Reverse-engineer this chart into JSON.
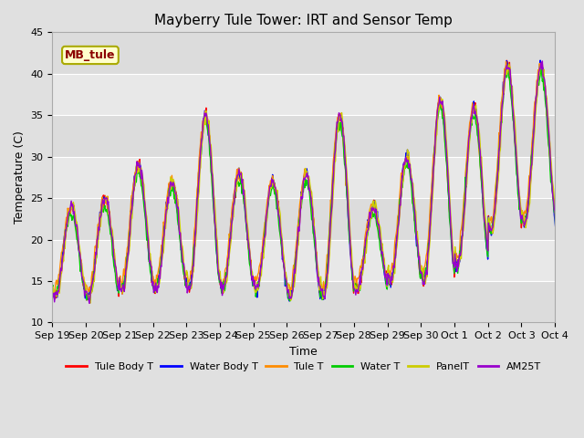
{
  "title": "Mayberry Tule Tower: IRT and Sensor Temp",
  "ylabel": "Temperature (C)",
  "xlabel": "Time",
  "ylim": [
    10,
    45
  ],
  "annotation_text": "MB_tule",
  "annotation_color": "#8B0000",
  "annotation_bg": "#FFFFCC",
  "annotation_border": "#AAAA00",
  "series": [
    {
      "label": "Tule Body T",
      "color": "#FF0000"
    },
    {
      "label": "Water Body T",
      "color": "#0000FF"
    },
    {
      "label": "Tule T",
      "color": "#FF8C00"
    },
    {
      "label": "Water T",
      "color": "#00CC00"
    },
    {
      "label": "PanelT",
      "color": "#CCCC00"
    },
    {
      "label": "AM25T",
      "color": "#9900CC"
    }
  ],
  "x_tick_labels": [
    "Sep 19",
    "Sep 20",
    "Sep 21",
    "Sep 22",
    "Sep 23",
    "Sep 24",
    "Sep 25",
    "Sep 26",
    "Sep 27",
    "Sep 28",
    "Sep 29",
    "Sep 30",
    "Oct 1",
    "Oct 2",
    "Oct 3",
    "Oct 4"
  ],
  "figure_bg": "#E0E0E0",
  "plot_bg": "#E8E8E8",
  "stripe_light": "#EBEBEB",
  "stripe_dark": "#D8D8D8",
  "grid_color": "#FFFFFF",
  "num_days": 16,
  "points_per_day": 48,
  "base_min_temps": [
    13,
    13,
    14,
    14,
    14,
    14,
    14,
    13,
    13,
    14,
    15,
    15,
    17,
    21,
    22,
    21
  ],
  "base_max_temps": [
    24,
    25,
    29,
    27,
    35,
    28,
    27,
    28,
    35,
    24,
    30,
    37,
    36,
    41,
    41,
    39
  ],
  "line_width": 1.0
}
